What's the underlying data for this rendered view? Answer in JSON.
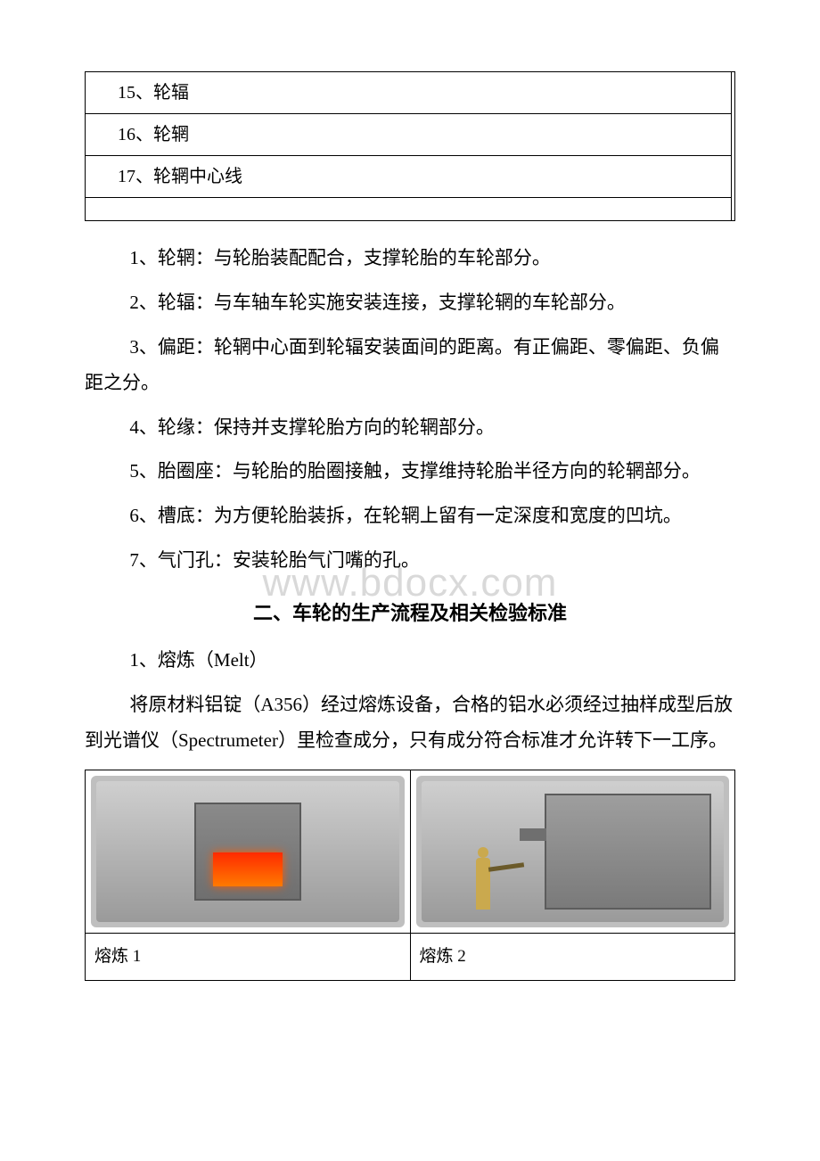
{
  "table_top": {
    "rows": [
      "15、轮辐",
      "16、轮辋",
      "17、轮辋中心线"
    ]
  },
  "paragraphs": {
    "p1": "1、轮辋：与轮胎装配配合，支撑轮胎的车轮部分。",
    "p2": "2、轮辐：与车轴车轮实施安装连接，支撑轮辋的车轮部分。",
    "p3": "3、偏距：轮辋中心面到轮辐安装面间的距离。有正偏距、零偏距、负偏距之分。",
    "p4": "4、轮缘：保持并支撑轮胎方向的轮辋部分。",
    "p5": "5、胎圈座：与轮胎的胎圈接触，支撑维持轮胎半径方向的轮辋部分。",
    "p6": "6、槽底：为方便轮胎装拆，在轮辋上留有一定深度和宽度的凹坑。",
    "p7": "7、气门孔：安装轮胎气门嘴的孔。"
  },
  "section2": {
    "title": "二、车轮的生产流程及相关检验标准",
    "sub1": "1、熔炼（Melt）",
    "body1": "将原材料铝锭（A356）经过熔炼设备，合格的铝水必须经过抽样成型后放到光谱仪（Spectrumeter）里检查成分，只有成分符合标准才允许转下一工序。"
  },
  "captions": {
    "c1": "熔炼 1",
    "c2": "熔炼 2"
  },
  "watermark": "www.bdocx.com",
  "colors": {
    "text": "#000000",
    "border": "#000000",
    "watermark": "#d9d9d9",
    "fire": "#ff2a00",
    "worker": "#caa94e"
  }
}
